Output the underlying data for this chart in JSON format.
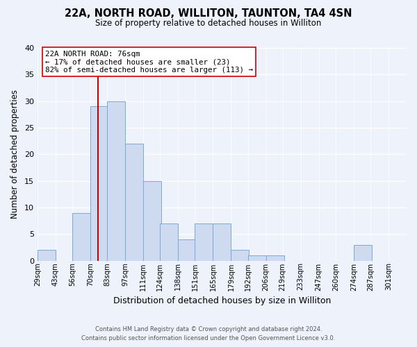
{
  "title": "22A, NORTH ROAD, WILLITON, TAUNTON, TA4 4SN",
  "subtitle": "Size of property relative to detached houses in Williton",
  "xlabel": "Distribution of detached houses by size in Williton",
  "ylabel": "Number of detached properties",
  "bar_color": "#cddaf0",
  "bar_edge_color": "#7aaad0",
  "bins_left": [
    29,
    43,
    56,
    70,
    83,
    97,
    111,
    124,
    138,
    151,
    165,
    179,
    192,
    206,
    219,
    233,
    247,
    260,
    274,
    287,
    301
  ],
  "bin_width": 14,
  "counts": [
    2,
    0,
    9,
    29,
    30,
    22,
    15,
    7,
    4,
    7,
    7,
    2,
    1,
    1,
    0,
    0,
    0,
    0,
    3,
    0,
    0
  ],
  "ylim": [
    0,
    40
  ],
  "yticks": [
    0,
    5,
    10,
    15,
    20,
    25,
    30,
    35,
    40
  ],
  "xlim_left": 29,
  "xlim_right": 315,
  "marker_value": 76,
  "marker_label": "22A NORTH ROAD: 76sqm",
  "annotation_line1": "← 17% of detached houses are smaller (23)",
  "annotation_line2": "82% of semi-detached houses are larger (113) →",
  "marker_color": "#cc0000",
  "footer_line1": "Contains HM Land Registry data © Crown copyright and database right 2024.",
  "footer_line2": "Contains public sector information licensed under the Open Government Licence v3.0.",
  "bg_color": "#eef2fb",
  "grid_color": "#d8e0f0",
  "annotation_box_edge": "#cc0000",
  "tick_labels": [
    "29sqm",
    "43sqm",
    "56sqm",
    "70sqm",
    "83sqm",
    "97sqm",
    "111sqm",
    "124sqm",
    "138sqm",
    "151sqm",
    "165sqm",
    "179sqm",
    "192sqm",
    "206sqm",
    "219sqm",
    "233sqm",
    "247sqm",
    "260sqm",
    "274sqm",
    "287sqm",
    "301sqm"
  ]
}
